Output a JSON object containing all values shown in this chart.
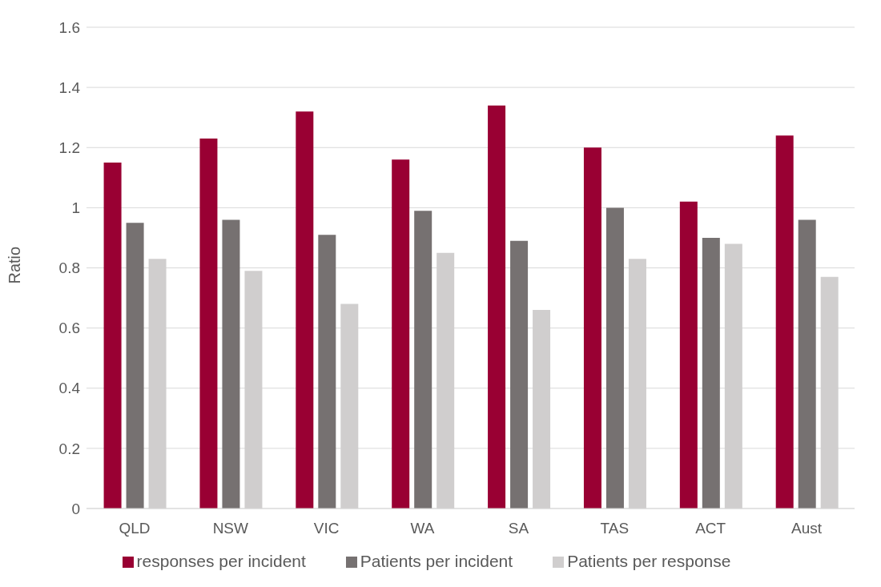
{
  "chart_data": {
    "type": "bar",
    "ylabel": "Ratio",
    "categories": [
      "QLD",
      "NSW",
      "VIC",
      "WA",
      "SA",
      "TAS",
      "ACT",
      "Aust"
    ],
    "series": [
      {
        "name": "responses per incident",
        "color": "#990033",
        "values": [
          1.15,
          1.23,
          1.32,
          1.16,
          1.34,
          1.2,
          1.02,
          1.24
        ]
      },
      {
        "name": "Patients per incident",
        "color": "#767171",
        "values": [
          0.95,
          0.96,
          0.91,
          0.99,
          0.89,
          1.0,
          0.9,
          0.96
        ]
      },
      {
        "name": "Patients per response",
        "color": "#d0cece",
        "values": [
          0.83,
          0.79,
          0.68,
          0.85,
          0.66,
          0.83,
          0.88,
          0.77
        ]
      }
    ],
    "ylim": [
      0,
      1.6
    ],
    "yticks": [
      0,
      0.2,
      0.4,
      0.6,
      0.8,
      1,
      1.2,
      1.4,
      1.6
    ],
    "grid": "y",
    "legend": "bottom"
  }
}
